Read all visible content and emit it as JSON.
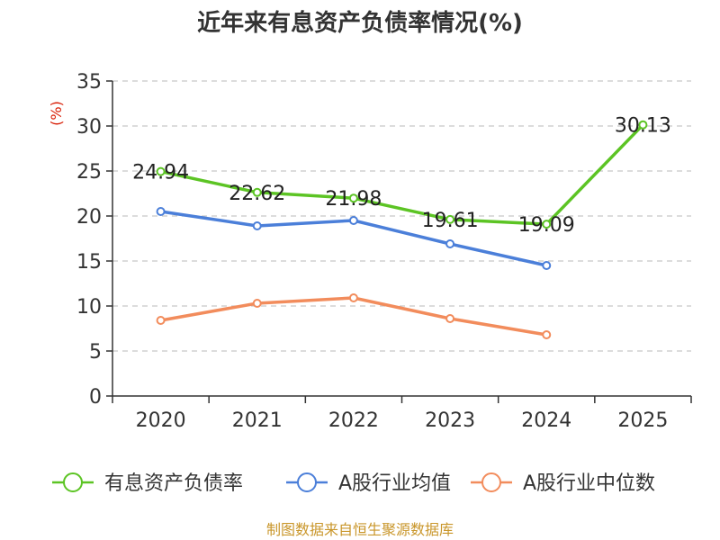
{
  "chart_data": {
    "type": "line",
    "title": "近年来有息资产负债率情况(%)",
    "ylabel": "(%)",
    "xlabel": "",
    "categories": [
      "2020",
      "2021",
      "2022",
      "2023",
      "2024",
      "2025"
    ],
    "ylim": [
      0,
      35
    ],
    "yticks": [
      0,
      5,
      10,
      15,
      20,
      25,
      30,
      35
    ],
    "grid": true,
    "legend": "bottom",
    "series": [
      {
        "name": "有息资产负债率",
        "color": "#5cc424",
        "values": [
          24.94,
          22.62,
          21.98,
          19.61,
          19.09,
          30.13
        ],
        "labels": [
          "24.94",
          "22.62",
          "21.98",
          "19.61",
          "19.09",
          "30.13"
        ]
      },
      {
        "name": "A股行业均值",
        "color": "#4b7fd9",
        "values": [
          20.5,
          18.9,
          19.5,
          16.9,
          14.5,
          null
        ]
      },
      {
        "name": "A股行业中位数",
        "color": "#f28c5c",
        "values": [
          8.4,
          10.3,
          10.9,
          8.6,
          6.8,
          null
        ]
      }
    ],
    "source": "制图数据来自恒生聚源数据库",
    "source_color": "#c9962a",
    "unit_color": "#d81e06"
  }
}
